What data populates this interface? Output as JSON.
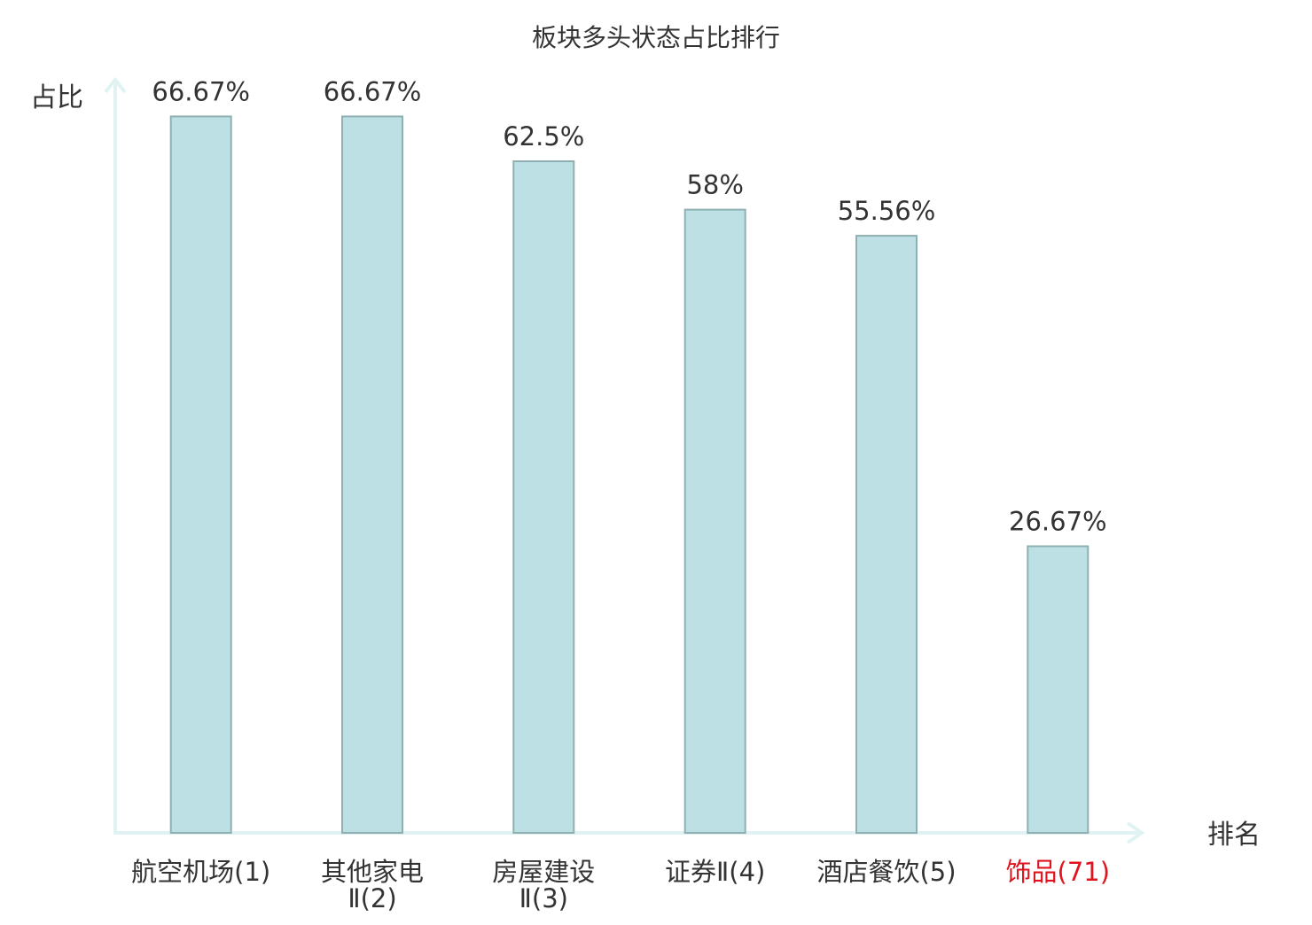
{
  "chart_data": {
    "type": "bar",
    "title": "板块多头状态占比排行",
    "ylabel": "占比",
    "xlabel": "排名",
    "ylim": [
      0,
      70
    ],
    "grid": false,
    "categories": [
      {
        "name_lines": [
          "航空机场(1)"
        ],
        "highlight": false
      },
      {
        "name_lines": [
          "其他家电",
          "Ⅱ(2)"
        ],
        "highlight": false
      },
      {
        "name_lines": [
          "房屋建设",
          "Ⅱ(3)"
        ],
        "highlight": false
      },
      {
        "name_lines": [
          "证券Ⅱ(4)"
        ],
        "highlight": false
      },
      {
        "name_lines": [
          "酒店餐饮(5)"
        ],
        "highlight": false
      },
      {
        "name_lines": [
          "饰品(71)"
        ],
        "highlight": true
      }
    ],
    "values": [
      66.67,
      66.67,
      62.5,
      58,
      55.56,
      26.67
    ],
    "value_labels": [
      "66.67%",
      "66.67%",
      "62.5%",
      "58%",
      "55.56%",
      "26.67%"
    ]
  },
  "colors": {
    "bar_fill": "#bce0e3",
    "bar_stroke": "#8fb0b3",
    "axis": "#e0f3f2",
    "text": "#333333",
    "highlight_text": "#e0141e"
  }
}
